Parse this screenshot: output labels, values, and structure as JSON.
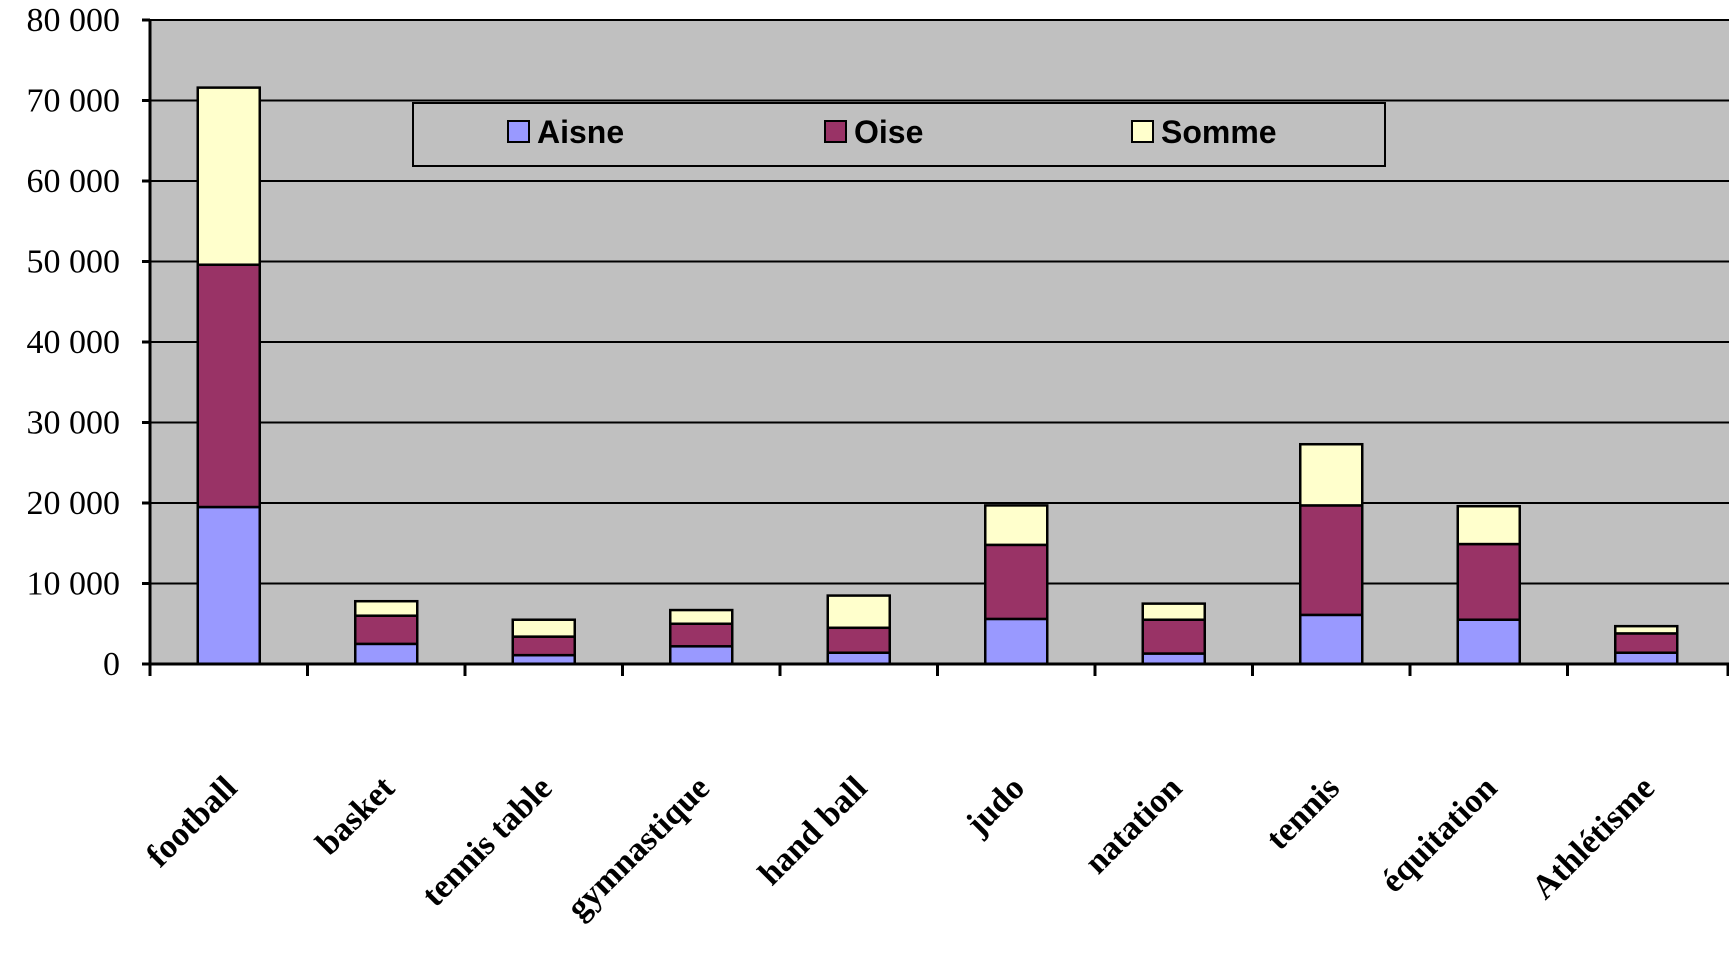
{
  "chart_data": {
    "type": "bar",
    "stacked": true,
    "categories": [
      "football",
      "basket",
      "tennis table",
      "gymnastique",
      "hand ball",
      "judo",
      "natation",
      "tennis",
      "équitation",
      "Athlétisme"
    ],
    "series": [
      {
        "name": "Aisne",
        "color": "#9999ff",
        "values": [
          19500,
          2500,
          1100,
          2200,
          1400,
          5600,
          1300,
          6100,
          5500,
          1400
        ]
      },
      {
        "name": "Oise",
        "color": "#993366",
        "values": [
          30100,
          3500,
          2300,
          2800,
          3100,
          9200,
          4200,
          13600,
          9400,
          2400
        ]
      },
      {
        "name": "Somme",
        "color": "#ffffcc",
        "values": [
          22000,
          1800,
          2100,
          1700,
          4000,
          4900,
          2000,
          7600,
          4700,
          900
        ]
      }
    ],
    "y_ticks": [
      "0",
      "10 000",
      "20 000",
      "30 000",
      "40 000",
      "50 000",
      "60 000",
      "70 000",
      "80 000"
    ],
    "ylim": [
      0,
      80000
    ],
    "ytick_step": 10000,
    "plot_background": "#c0c0c0",
    "grid": true,
    "legend_position": "top"
  }
}
